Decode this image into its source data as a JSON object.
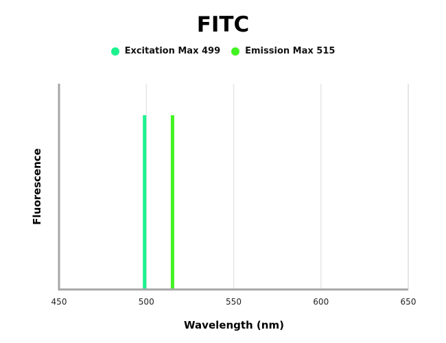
{
  "chart_data": {
    "type": "line",
    "title": "FITC",
    "xlabel": "Wavelength (nm)",
    "ylabel": "Fluorescence",
    "xlim": [
      450,
      650
    ],
    "ylim": [
      0,
      1
    ],
    "x_ticks": [
      450,
      500,
      550,
      600,
      650
    ],
    "x_tick_labels": [
      "450",
      "500",
      "550",
      "600",
      "650"
    ],
    "grid": true,
    "legend_position": "top-center",
    "series": [
      {
        "name": "Excitation Max 499",
        "x": [
          499,
          499
        ],
        "y": [
          0,
          1
        ],
        "color": "#1ef28f"
      },
      {
        "name": "Emission Max 515",
        "x": [
          515,
          515
        ],
        "y": [
          0,
          1
        ],
        "color": "#43f222"
      }
    ]
  }
}
